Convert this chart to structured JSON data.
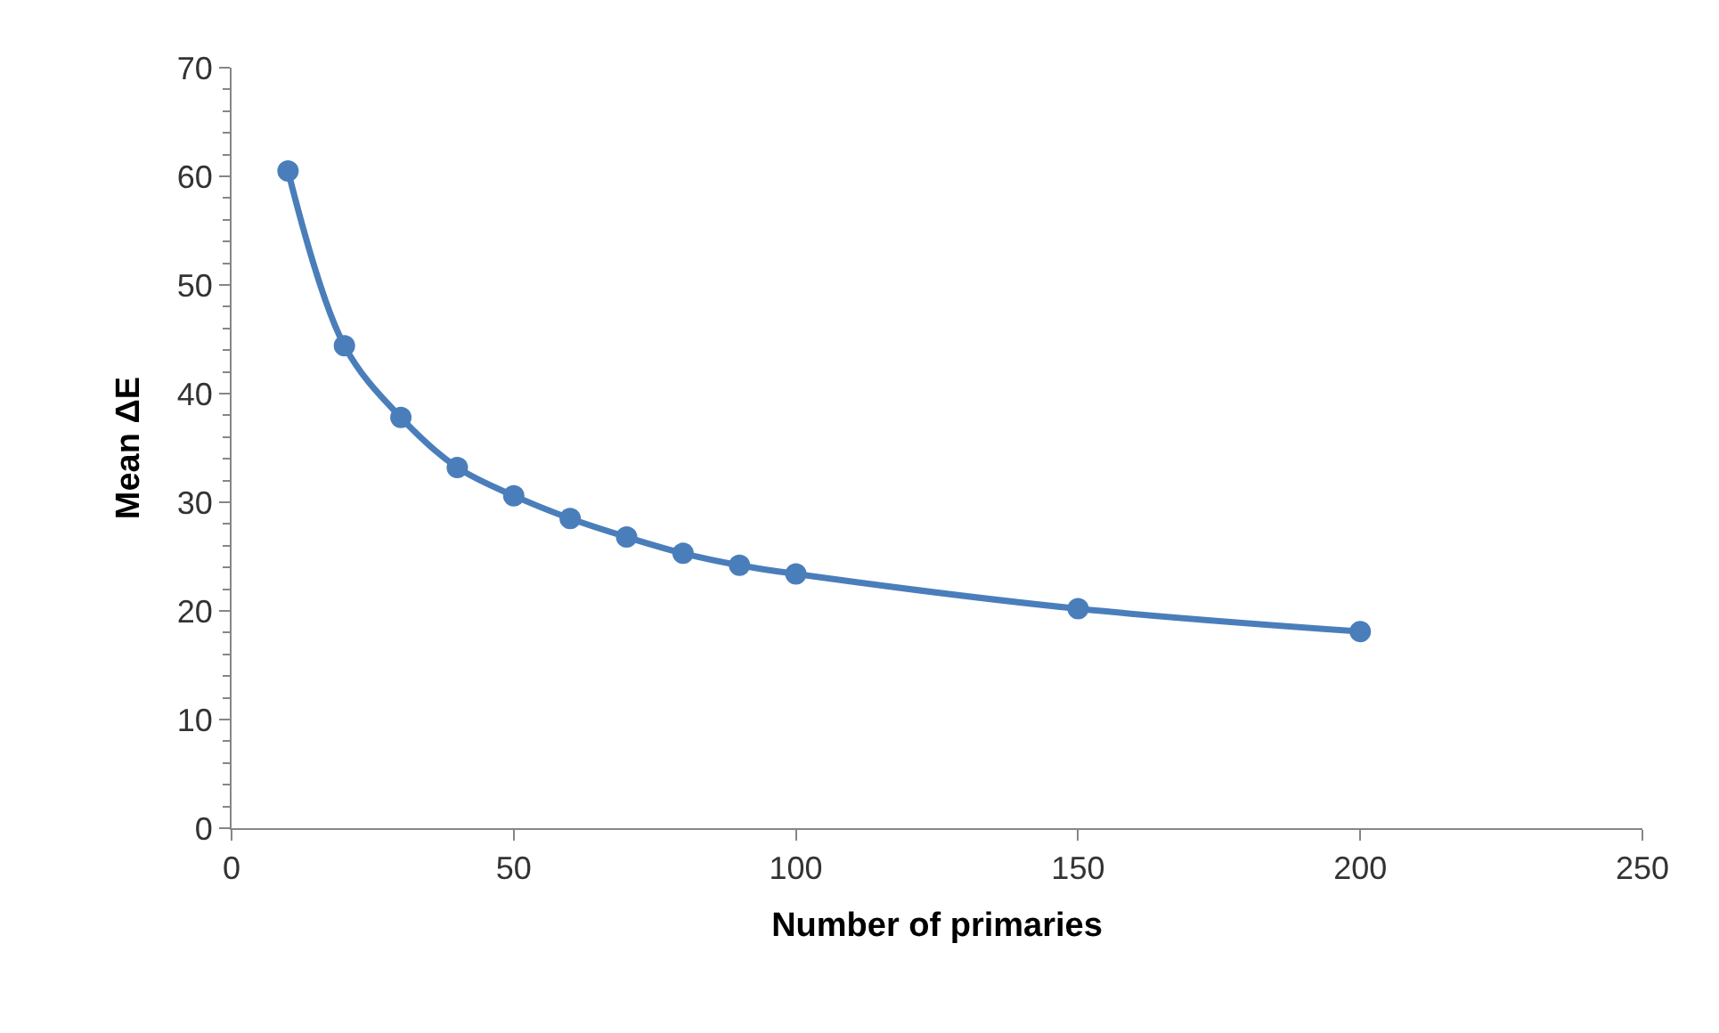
{
  "chart_data": {
    "type": "line",
    "xlabel": "Number of primaries",
    "ylabel": "Mean ΔE",
    "x": [
      10,
      20,
      30,
      40,
      50,
      60,
      70,
      80,
      90,
      100,
      150,
      200
    ],
    "series": [
      {
        "color": "#4a7ebb",
        "values": [
          60.5,
          44.4,
          37.8,
          33.2,
          30.6,
          28.5,
          26.8,
          25.3,
          24.2,
          23.4,
          20.2,
          18.1
        ]
      }
    ],
    "xlim": [
      0,
      250
    ],
    "xticks": [
      0,
      50,
      100,
      150,
      200,
      250
    ],
    "ylim": [
      0,
      70
    ],
    "yticks": [
      0,
      10,
      20,
      30,
      40,
      50,
      60,
      70
    ],
    "legend": false,
    "marker": "circle",
    "line_style": "solid"
  }
}
